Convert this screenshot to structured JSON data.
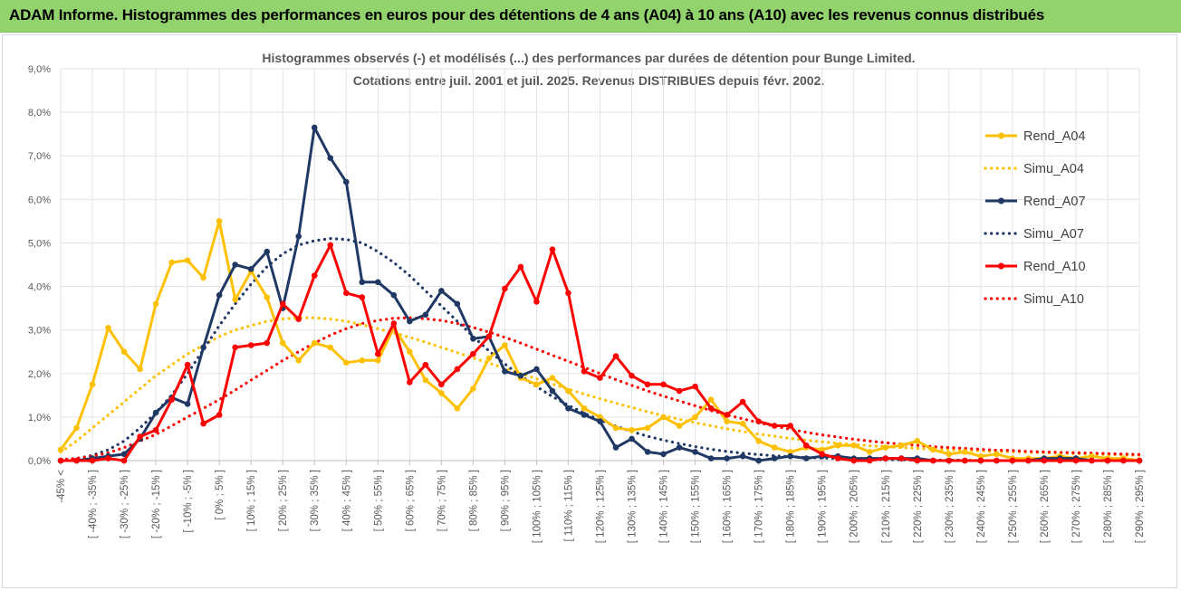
{
  "header": {
    "title": "ADAM Informe. Histogrammes des performances en euros pour des détentions de 4 ans (A04) à 10 ans (A10) avec les revenus connus distribués"
  },
  "chart_data": {
    "type": "line",
    "title_line1": "Histogrammes observés (-) et modélisés (...) des performances par durées de détention pour Bunge Limited.",
    "title_line2": "Cotations entre juil. 2001 et juil. 2025. Revenus DISTRIBUES depuis févr. 2002.",
    "xlabel": "",
    "ylabel": "",
    "ylim": [
      0,
      9
    ],
    "y_ticks": [
      "0,0%",
      "1,0%",
      "2,0%",
      "3,0%",
      "4,0%",
      "5,0%",
      "6,0%",
      "7,0%",
      "8,0%",
      "9,0%"
    ],
    "x_tick_labels": [
      "-45% <",
      "[ -40% ; -35% ]",
      "[ -30% ; -25% ]",
      "[ -20% ; -15% ]",
      "[ -10% ; -5% ]",
      "[ 0% ; 5% ]",
      "[ 10% ; 15% ]",
      "[ 20% ; 25% ]",
      "[ 30% ; 35% ]",
      "[ 40% ; 45% ]",
      "[ 50% ; 55% ]",
      "[ 60% ; 65% ]",
      "[ 70% ; 75% ]",
      "[ 80% ; 85% ]",
      "[ 90% ; 95% ]",
      "[ 100% ; 105% ]",
      "[ 110% ; 115% ]",
      "[ 120% ; 125% ]",
      "[ 130% ; 135% ]",
      "[ 140% ; 145% ]",
      "[ 150% ; 155% ]",
      "[ 160% ; 165% ]",
      "[ 170% ; 175% ]",
      "[ 180% ; 185% ]",
      "[ 190% ; 195% ]",
      "[ 200% ; 205% ]",
      "[ 210% ; 215% ]",
      "[ 220% ; 225% ]",
      "[ 230% ; 235% ]",
      "[ 240% ; 245% ]",
      "[ 250% ; 255% ]",
      "[ 260% ; 265% ]",
      "[ 270% ; 275% ]",
      "[ 280% ; 285% ]",
      "[ 290% ; 295% ]"
    ],
    "n_bins": 69,
    "grid": true,
    "legend_position": "right",
    "series": [
      {
        "name": "Rend_A04",
        "style": "solid",
        "color": "#ffc000",
        "values": [
          0.25,
          0.75,
          1.75,
          3.05,
          2.5,
          2.1,
          3.6,
          4.55,
          4.6,
          4.2,
          5.5,
          3.7,
          4.35,
          3.75,
          2.7,
          2.3,
          2.7,
          2.6,
          2.25,
          2.3,
          2.3,
          3.05,
          2.5,
          1.85,
          1.55,
          1.2,
          1.65,
          2.35,
          2.65,
          1.9,
          1.75,
          1.9,
          1.6,
          1.2,
          1.0,
          0.75,
          0.7,
          0.75,
          1.0,
          0.8,
          1.0,
          1.4,
          0.9,
          0.85,
          0.45,
          0.3,
          0.2,
          0.3,
          0.25,
          0.35,
          0.35,
          0.2,
          0.3,
          0.35,
          0.45,
          0.25,
          0.15,
          0.2,
          0.1,
          0.15,
          0.05,
          0.05,
          0.05,
          0.1,
          0.05,
          0.1,
          0.05,
          0.05,
          0.0
        ]
      },
      {
        "name": "Simu_A04",
        "style": "dotted",
        "color": "#ffc000",
        "values": [
          0.2,
          0.45,
          0.75,
          1.05,
          1.35,
          1.65,
          1.95,
          2.2,
          2.45,
          2.65,
          2.85,
          3.0,
          3.1,
          3.2,
          3.25,
          3.28,
          3.28,
          3.25,
          3.2,
          3.12,
          3.03,
          2.93,
          2.83,
          2.72,
          2.6,
          2.48,
          2.36,
          2.24,
          2.12,
          2.0,
          1.88,
          1.76,
          1.64,
          1.53,
          1.42,
          1.32,
          1.22,
          1.12,
          1.03,
          0.95,
          0.87,
          0.8,
          0.73,
          0.67,
          0.61,
          0.56,
          0.51,
          0.47,
          0.43,
          0.4,
          0.37,
          0.34,
          0.32,
          0.3,
          0.28,
          0.26,
          0.25,
          0.24,
          0.22,
          0.21,
          0.2,
          0.19,
          0.18,
          0.17,
          0.16,
          0.15,
          0.14,
          0.13,
          0.12
        ]
      },
      {
        "name": "Rend_A07",
        "style": "solid",
        "color": "#1f3864",
        "values": [
          0.0,
          0.0,
          0.05,
          0.1,
          0.15,
          0.5,
          1.1,
          1.45,
          1.3,
          2.6,
          3.8,
          4.5,
          4.4,
          4.8,
          3.5,
          5.15,
          7.65,
          6.95,
          6.4,
          4.1,
          4.1,
          3.8,
          3.2,
          3.35,
          3.9,
          3.6,
          2.8,
          2.85,
          2.05,
          1.95,
          2.1,
          1.6,
          1.2,
          1.05,
          0.9,
          0.3,
          0.5,
          0.2,
          0.15,
          0.3,
          0.2,
          0.05,
          0.05,
          0.1,
          0.0,
          0.05,
          0.1,
          0.05,
          0.1,
          0.1,
          0.05,
          0.05,
          0.05,
          0.05,
          0.05,
          0.0,
          0.0,
          0.0,
          0.0,
          0.0,
          0.0,
          0.0,
          0.05,
          0.05,
          0.05,
          0.0,
          0.0,
          0.0,
          0.0
        ]
      },
      {
        "name": "Simu_A07",
        "style": "dotted",
        "color": "#1f3864",
        "values": [
          0.02,
          0.05,
          0.12,
          0.25,
          0.45,
          0.75,
          1.1,
          1.5,
          2.0,
          2.55,
          3.1,
          3.6,
          4.05,
          4.45,
          4.75,
          4.95,
          5.05,
          5.1,
          5.08,
          5.0,
          4.8,
          4.55,
          4.25,
          3.9,
          3.55,
          3.2,
          2.85,
          2.52,
          2.22,
          1.95,
          1.7,
          1.47,
          1.27,
          1.09,
          0.93,
          0.79,
          0.67,
          0.56,
          0.47,
          0.39,
          0.32,
          0.26,
          0.21,
          0.17,
          0.14,
          0.11,
          0.09,
          0.07,
          0.06,
          0.05,
          0.04,
          0.03,
          0.02,
          0.02,
          0.01,
          0.01,
          0.01,
          0.01,
          0.0,
          0.0,
          0.0,
          0.0,
          0.0,
          0.0,
          0.0,
          0.0,
          0.0,
          0.0,
          0.0
        ]
      },
      {
        "name": "Rend_A10",
        "style": "solid",
        "color": "#ff0000",
        "values": [
          0.0,
          0.0,
          0.0,
          0.05,
          0.0,
          0.55,
          0.7,
          1.4,
          2.2,
          0.85,
          1.05,
          2.6,
          2.65,
          2.7,
          3.6,
          3.25,
          4.25,
          4.95,
          3.85,
          3.75,
          2.45,
          3.15,
          1.8,
          2.2,
          1.75,
          2.1,
          2.45,
          2.85,
          3.95,
          4.45,
          3.65,
          4.85,
          3.85,
          2.05,
          1.9,
          2.4,
          1.95,
          1.75,
          1.75,
          1.6,
          1.7,
          1.2,
          1.05,
          1.35,
          0.9,
          0.8,
          0.8,
          0.35,
          0.15,
          0.05,
          0.0,
          0.0,
          0.05,
          0.05,
          0.0,
          0.0,
          0.0,
          0.0,
          0.0,
          0.0,
          0.0,
          0.0,
          0.0,
          0.0,
          0.0,
          0.0,
          0.0,
          0.0,
          0.0
        ]
      },
      {
        "name": "Simu_A10",
        "style": "dotted",
        "color": "#ff0000",
        "values": [
          0.02,
          0.05,
          0.1,
          0.18,
          0.3,
          0.45,
          0.6,
          0.8,
          1.0,
          1.2,
          1.4,
          1.62,
          1.85,
          2.07,
          2.3,
          2.5,
          2.7,
          2.88,
          3.03,
          3.15,
          3.22,
          3.27,
          3.28,
          3.26,
          3.22,
          3.15,
          3.06,
          2.95,
          2.83,
          2.7,
          2.56,
          2.42,
          2.28,
          2.14,
          2.0,
          1.86,
          1.73,
          1.6,
          1.48,
          1.37,
          1.26,
          1.15,
          1.05,
          0.96,
          0.87,
          0.79,
          0.72,
          0.65,
          0.59,
          0.54,
          0.49,
          0.45,
          0.41,
          0.38,
          0.35,
          0.32,
          0.3,
          0.28,
          0.26,
          0.24,
          0.23,
          0.21,
          0.2,
          0.19,
          0.18,
          0.17,
          0.16,
          0.15,
          0.14
        ]
      }
    ]
  }
}
